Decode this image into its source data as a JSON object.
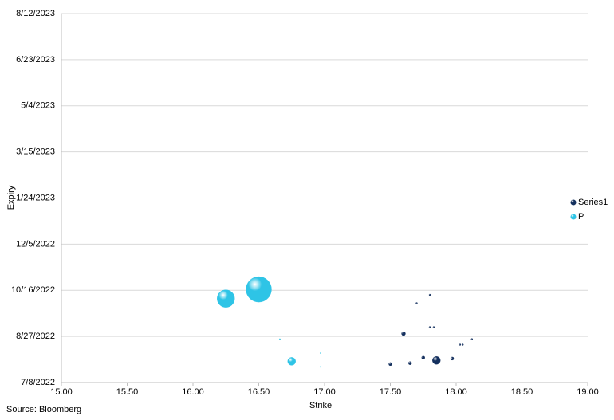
{
  "chart_data": {
    "type": "bubble",
    "x_label": "Strike",
    "y_label": "Expiry",
    "source": "Source: Bloomberg",
    "xlim": [
      15,
      19
    ],
    "xticks": [
      {
        "value": 15,
        "label": "15.00"
      },
      {
        "value": 15.5,
        "label": "15.50"
      },
      {
        "value": 16,
        "label": "16.00"
      },
      {
        "value": 16.5,
        "label": "16.50"
      },
      {
        "value": 17,
        "label": "17.00"
      },
      {
        "value": 17.5,
        "label": "17.50"
      },
      {
        "value": 18,
        "label": "18.00"
      },
      {
        "value": 18.5,
        "label": "18.50"
      },
      {
        "value": 19,
        "label": "19.00"
      }
    ],
    "ylim": [
      44750,
      45150
    ],
    "yticks": [
      {
        "value": 44750,
        "label": "7/8/2022"
      },
      {
        "value": 44800,
        "label": "8/27/2022"
      },
      {
        "value": 44850,
        "label": "10/16/2022"
      },
      {
        "value": 44900,
        "label": "12/5/2022"
      },
      {
        "value": 44950,
        "label": "1/24/2023"
      },
      {
        "value": 45000,
        "label": "3/15/2023"
      },
      {
        "value": 45050,
        "label": "5/4/2023"
      },
      {
        "value": 45100,
        "label": "6/23/2023"
      },
      {
        "value": 45150,
        "label": "8/12/2023"
      }
    ],
    "grid": true,
    "legend": "right",
    "series": [
      {
        "name": "Series1",
        "color": "#14305e",
        "x": [
          17.5,
          17.65,
          17.6,
          17.75,
          17.85,
          17.97,
          17.7,
          17.8,
          17.8,
          17.83,
          18.03,
          18.05,
          18.12
        ],
        "y": [
          44770,
          44771,
          44803,
          44777,
          44774,
          44776,
          44836,
          44845,
          44810,
          44810,
          44791,
          44791,
          44797
        ],
        "sizes": [
          4,
          4,
          6,
          4,
          25,
          4,
          1,
          1,
          1,
          1,
          1,
          1,
          1
        ]
      },
      {
        "name": "P",
        "color": "#2ec4e6",
        "x": [
          16.25,
          16.5,
          16.75,
          16.66,
          16.97,
          16.97
        ],
        "y": [
          44841,
          44851,
          44773,
          44797,
          44782,
          44767
        ],
        "sizes": [
          121,
          256,
          25,
          0.5,
          0.5,
          0.5
        ]
      }
    ]
  }
}
